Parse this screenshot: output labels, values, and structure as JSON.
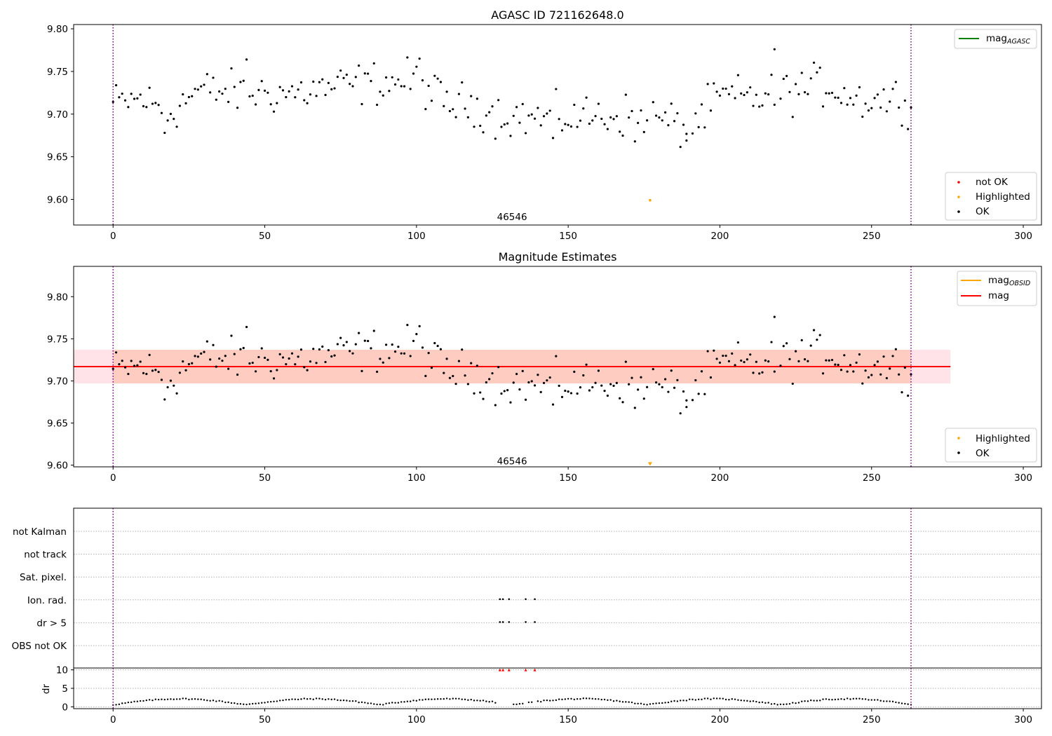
{
  "colors": {
    "ok": "#000000",
    "not_ok": "#ff0000",
    "highlighted": "#ffa500",
    "mag_agasc": "#008000",
    "mag_obsid": "#ffa500",
    "mag_line": "#ff0000",
    "obs_boundary": "#800080",
    "band_outer": "#ffc0cb",
    "band_inner": "#ffa07a"
  },
  "x_ticks": [
    "0",
    "50",
    "100",
    "150",
    "200",
    "250",
    "300"
  ],
  "chart_data": [
    {
      "type": "scatter",
      "title": "AGASC ID 721162648.0",
      "xlim": [
        -13,
        306
      ],
      "ylim": [
        9.57,
        9.805
      ],
      "y_ticks": [
        "9.60",
        "9.65",
        "9.70",
        "9.75",
        "9.80"
      ],
      "obs_boundaries": [
        0,
        263
      ],
      "obsid_label": {
        "text": "46546",
        "x": 131.5,
        "y": 9.58
      },
      "legend_top": [
        {
          "label": "mag",
          "sub": "AGASC",
          "color": "#008000"
        }
      ],
      "legend_bottom": [
        {
          "label": "not OK",
          "color": "#ff0000"
        },
        {
          "label": "Highlighted",
          "color": "#ffa500"
        },
        {
          "label": "OK",
          "color": "#000000"
        }
      ],
      "highlighted_points": [
        {
          "x": 177,
          "y": 9.599
        }
      ]
    },
    {
      "type": "scatter",
      "title": "Magnitude Estimates",
      "xlim": [
        -13,
        306
      ],
      "ylim": [
        9.598,
        9.836
      ],
      "y_ticks": [
        "9.60",
        "9.65",
        "9.70",
        "9.75",
        "9.80"
      ],
      "obs_boundaries": [
        0,
        263
      ],
      "obsid_label": {
        "text": "46546",
        "x": 131.5,
        "y": 9.605
      },
      "mag_line": {
        "x_start": -13,
        "x_end": 276,
        "y": 9.717
      },
      "band_outer": {
        "y_low": 9.697,
        "y_high": 9.737
      },
      "band_inner": {
        "y_low": 9.697,
        "y_high": 9.737
      },
      "legend_top": [
        {
          "label": "mag",
          "sub": "OBSID",
          "color": "#ffa500"
        },
        {
          "label": "mag",
          "sub": "",
          "color": "#ff0000"
        }
      ],
      "legend_bottom": [
        {
          "label": "Highlighted",
          "color": "#ffa500"
        },
        {
          "label": "OK",
          "color": "#000000"
        }
      ],
      "highlighted_points": [
        {
          "x": 177,
          "y": 9.601
        }
      ]
    },
    {
      "type": "scatter",
      "title": "",
      "flag_labels": [
        "not Kalman",
        "not track",
        "Sat. pixel.",
        "Ion. rad.",
        "dr > 5",
        "OBS not OK"
      ],
      "flags": {
        "Ion. rad.": [
          127.5,
          128.5,
          130.5,
          136,
          139
        ],
        "dr > 5": [
          127.5,
          128.5,
          130.5,
          136,
          139
        ]
      },
      "dr_ylabel": "dr",
      "dr_y_ticks": [
        "0",
        "5",
        "10"
      ],
      "dr_ylim": [
        -0.5,
        10.5
      ],
      "dr_clipped_points": [
        127.5,
        128.5,
        130.5,
        136,
        139
      ]
    }
  ]
}
